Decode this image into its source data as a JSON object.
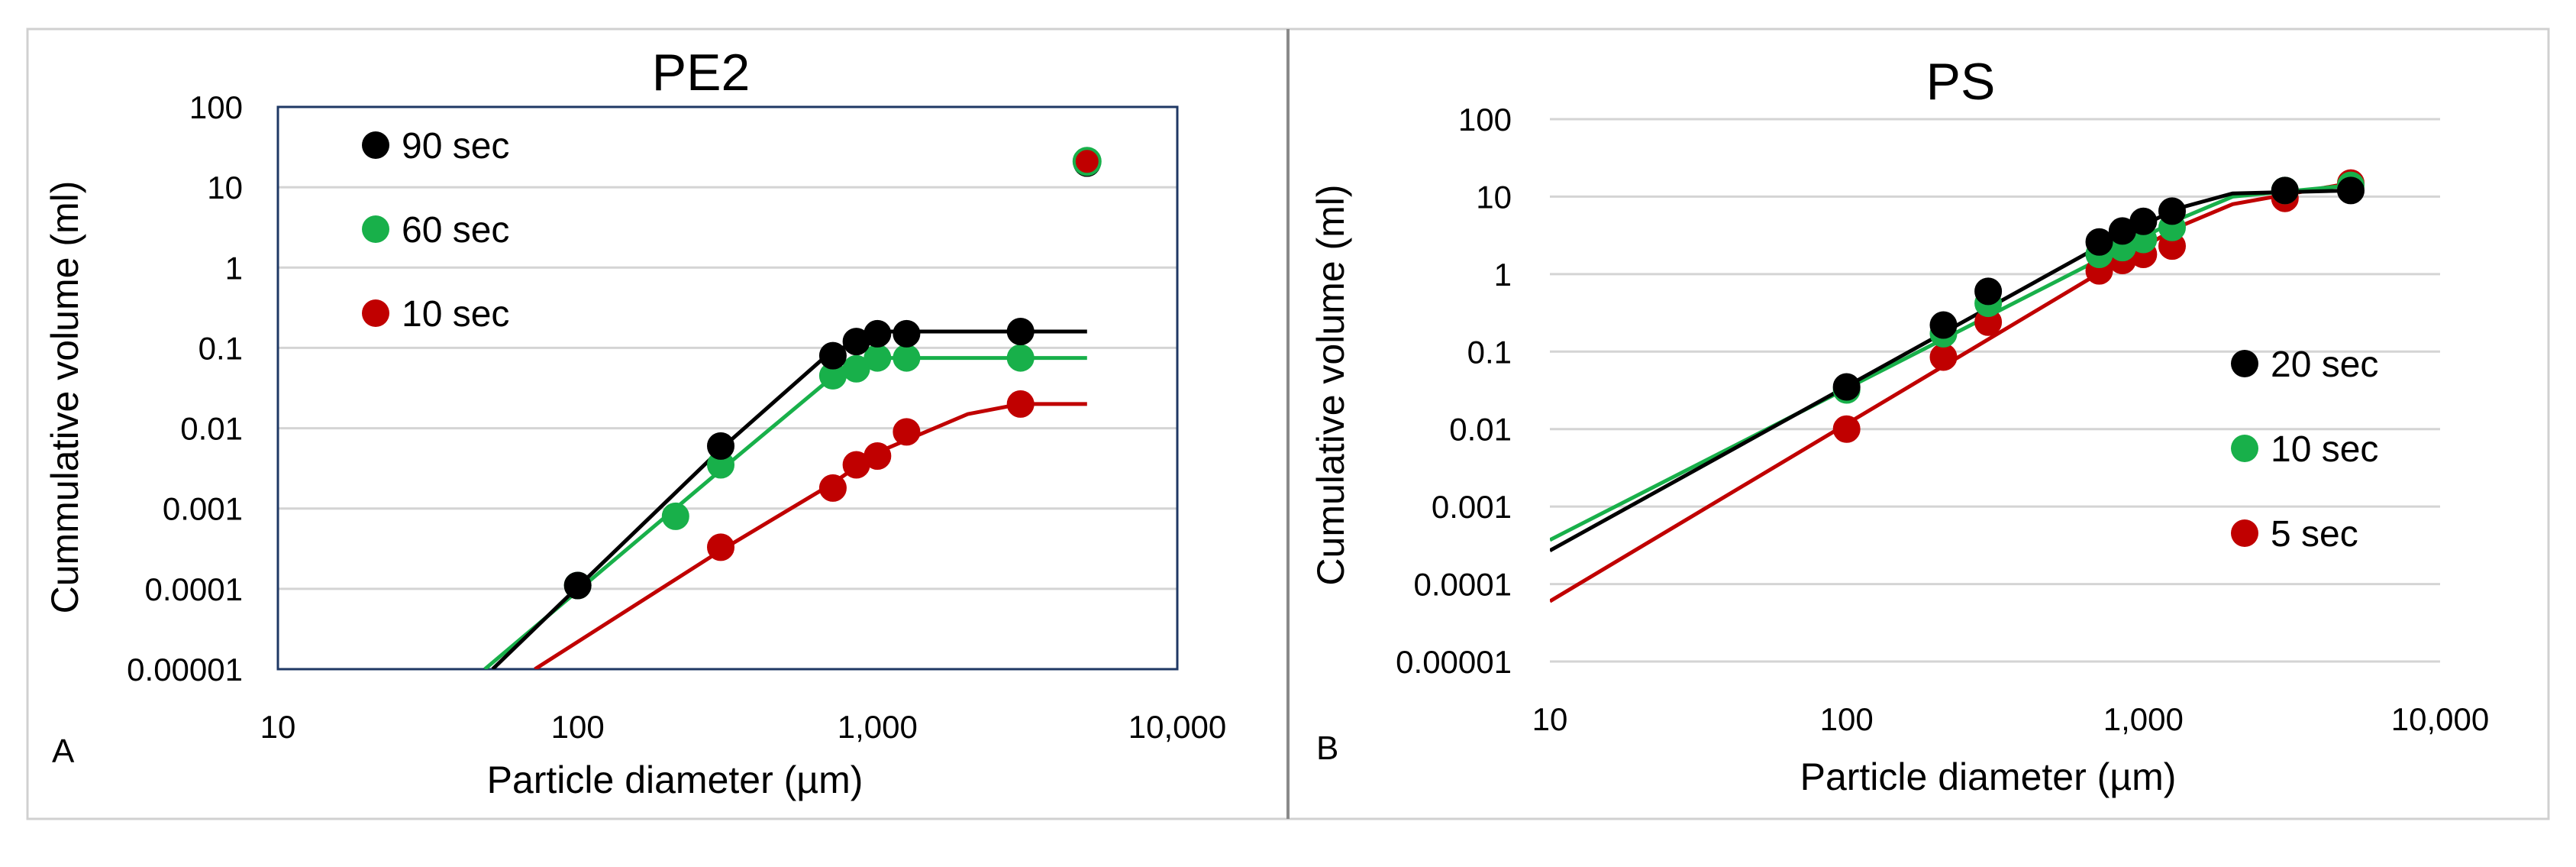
{
  "figure": {
    "panel_labels": [
      "A",
      "B"
    ],
    "colors": {
      "black": "#000000",
      "green": "#18b04a",
      "red": "#c00000"
    }
  },
  "chart_data": [
    {
      "id": "A",
      "type": "scatter",
      "title": "PE2",
      "xlabel": "Particle diameter (µm)",
      "ylabel": "Cummulative volume (ml)",
      "xscale": "log",
      "yscale": "log",
      "xlim": [
        10,
        10000
      ],
      "ylim": [
        1e-05,
        100
      ],
      "xticks": [
        "10",
        "100",
        "1,000",
        "10,000"
      ],
      "yticks": [
        "0.00001",
        "0.0001",
        "0.001",
        "0.01",
        "0.1",
        "1",
        "10",
        "100"
      ],
      "grid": "horizontal",
      "legend_position": "top-left",
      "series": [
        {
          "name": "90 sec",
          "color": "#000000",
          "points": [
            [
              100,
              0.00011
            ],
            [
              300,
              0.006
            ],
            [
              710,
              0.08
            ],
            [
              850,
              0.12
            ],
            [
              1000,
              0.15
            ],
            [
              1250,
              0.15
            ],
            [
              3000,
              0.16
            ],
            [
              5000,
              20
            ]
          ],
          "fit": [
            [
              52,
              1e-05
            ],
            [
              300,
              0.0055
            ],
            [
              700,
              0.09
            ],
            [
              1100,
              0.16
            ],
            [
              5000,
              0.16
            ]
          ]
        },
        {
          "name": "60 sec",
          "color": "#18b04a",
          "points": [
            [
              100,
              0.00011
            ],
            [
              212,
              0.0008
            ],
            [
              300,
              0.0035
            ],
            [
              710,
              0.045
            ],
            [
              850,
              0.055
            ],
            [
              1000,
              0.075
            ],
            [
              1250,
              0.075
            ],
            [
              3000,
              0.075
            ],
            [
              5000,
              20
            ]
          ],
          "fit": [
            [
              49,
              1e-05
            ],
            [
              300,
              0.003
            ],
            [
              700,
              0.042
            ],
            [
              1100,
              0.075
            ],
            [
              5000,
              0.075
            ]
          ]
        },
        {
          "name": "10 sec",
          "color": "#c00000",
          "points": [
            [
              300,
              0.00033
            ],
            [
              710,
              0.0018
            ],
            [
              850,
              0.0035
            ],
            [
              1000,
              0.0045
            ],
            [
              1250,
              0.009
            ],
            [
              3000,
              0.02
            ],
            [
              5000,
              21
            ]
          ],
          "fit": [
            [
              72,
              1e-05
            ],
            [
              300,
              0.0003
            ],
            [
              700,
              0.002
            ],
            [
              1000,
              0.005
            ],
            [
              2000,
              0.015
            ],
            [
              3000,
              0.02
            ],
            [
              5000,
              0.02
            ]
          ]
        }
      ]
    },
    {
      "id": "B",
      "type": "scatter",
      "title": "PS",
      "xlabel": "Particle diameter (µm)",
      "ylabel": "Cumulative volume (ml)",
      "xscale": "log",
      "yscale": "log",
      "xlim": [
        10,
        10000
      ],
      "ylim": [
        1e-05,
        100
      ],
      "xticks": [
        "10",
        "100",
        "1,000",
        "10,000"
      ],
      "yticks": [
        "0.00001",
        "0.0001",
        "0.001",
        "0.01",
        "0.1",
        "1",
        "10",
        "100"
      ],
      "grid": "horizontal",
      "legend_position": "right",
      "series": [
        {
          "name": "20 sec",
          "color": "#000000",
          "points": [
            [
              100,
              0.035
            ],
            [
              212,
              0.22
            ],
            [
              300,
              0.6
            ],
            [
              710,
              2.6
            ],
            [
              850,
              3.6
            ],
            [
              1000,
              4.8
            ],
            [
              1250,
              6.5
            ],
            [
              3000,
              12
            ],
            [
              5000,
              12
            ]
          ],
          "fit": [
            [
              10,
              0.00027
            ],
            [
              700,
              2.2
            ],
            [
              1300,
              7
            ],
            [
              2000,
              11
            ],
            [
              5000,
              12
            ]
          ]
        },
        {
          "name": "10 sec",
          "color": "#18b04a",
          "points": [
            [
              100,
              0.032
            ],
            [
              212,
              0.17
            ],
            [
              300,
              0.42
            ],
            [
              710,
              1.8
            ],
            [
              850,
              2.2
            ],
            [
              1000,
              2.8
            ],
            [
              1250,
              4
            ],
            [
              3000,
              12
            ],
            [
              5000,
              14
            ]
          ],
          "fit": [
            [
              10,
              0.00037
            ],
            [
              700,
              1.5
            ],
            [
              1300,
              5
            ],
            [
              2000,
              10
            ],
            [
              5000,
              14
            ]
          ]
        },
        {
          "name": "5 sec",
          "color": "#c00000",
          "points": [
            [
              100,
              0.01
            ],
            [
              212,
              0.085
            ],
            [
              300,
              0.24
            ],
            [
              710,
              1.1
            ],
            [
              850,
              1.5
            ],
            [
              1000,
              1.8
            ],
            [
              1250,
              2.3
            ],
            [
              3000,
              9.5
            ],
            [
              5000,
              15
            ]
          ],
          "fit": [
            [
              10,
              6e-05
            ],
            [
              700,
              1.0
            ],
            [
              1300,
              4
            ],
            [
              2000,
              8
            ],
            [
              5000,
              15
            ]
          ]
        }
      ]
    }
  ]
}
